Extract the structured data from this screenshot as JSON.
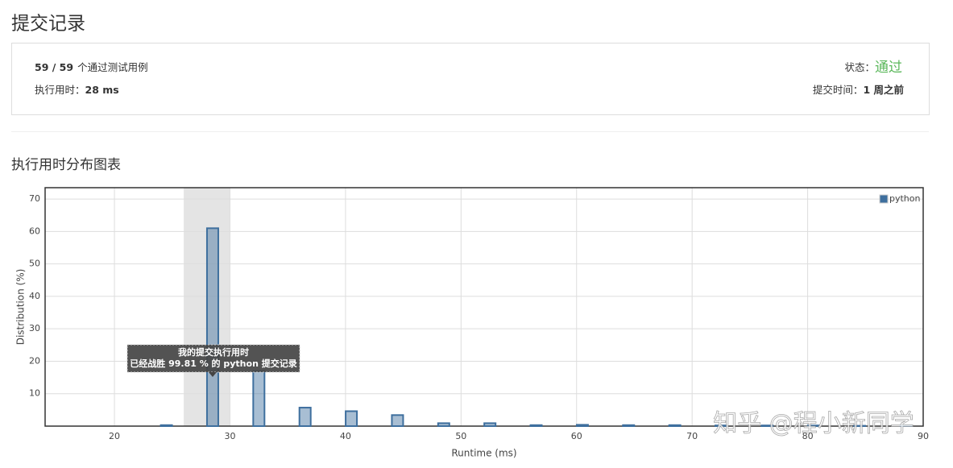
{
  "header": {
    "title": "提交记录"
  },
  "summary": {
    "cases": "59 / 59",
    "cases_label": "个通过测试用例",
    "runtime_label": "执行用时：",
    "runtime": "28 ms",
    "status_label": "状态：",
    "status": "通过",
    "time_label": "提交时间：",
    "time": "1 周之前"
  },
  "section_title": "执行用时分布图表",
  "watermark": "知乎 @程小新同学",
  "chart_data": {
    "type": "bar",
    "x_label": "Runtime (ms)",
    "y_label": "Distribution (%)",
    "x": [
      24.5,
      28.5,
      32.5,
      36.5,
      40.5,
      44.5,
      48.5,
      52.5,
      56.5,
      60.5,
      64.5,
      68.5,
      72.5,
      76.5,
      80.5,
      84.5,
      88.5
    ],
    "series": [
      {
        "name": "python",
        "color": "#3e6f9e",
        "values": [
          0.3,
          61,
          17,
          5.7,
          4.6,
          3.4,
          0.9,
          0.9,
          0.3,
          0.4,
          0.3,
          0.3,
          0.2,
          0.2,
          0.2,
          0.1,
          0.1
        ]
      }
    ],
    "xlim": [
      14,
      90
    ],
    "xticks": [
      20,
      30,
      40,
      50,
      60,
      70,
      80,
      90
    ],
    "ylim": [
      0,
      73.5
    ],
    "yticks": [
      10,
      20,
      30,
      40,
      50,
      60,
      70
    ],
    "grid": true,
    "legend": "top-right",
    "highlight_range": [
      26,
      30
    ],
    "annotation": {
      "x": 28.5,
      "lines": [
        "我的提交执行用时",
        "已经战胜 99.81 % 的 python 提交记录"
      ]
    }
  }
}
